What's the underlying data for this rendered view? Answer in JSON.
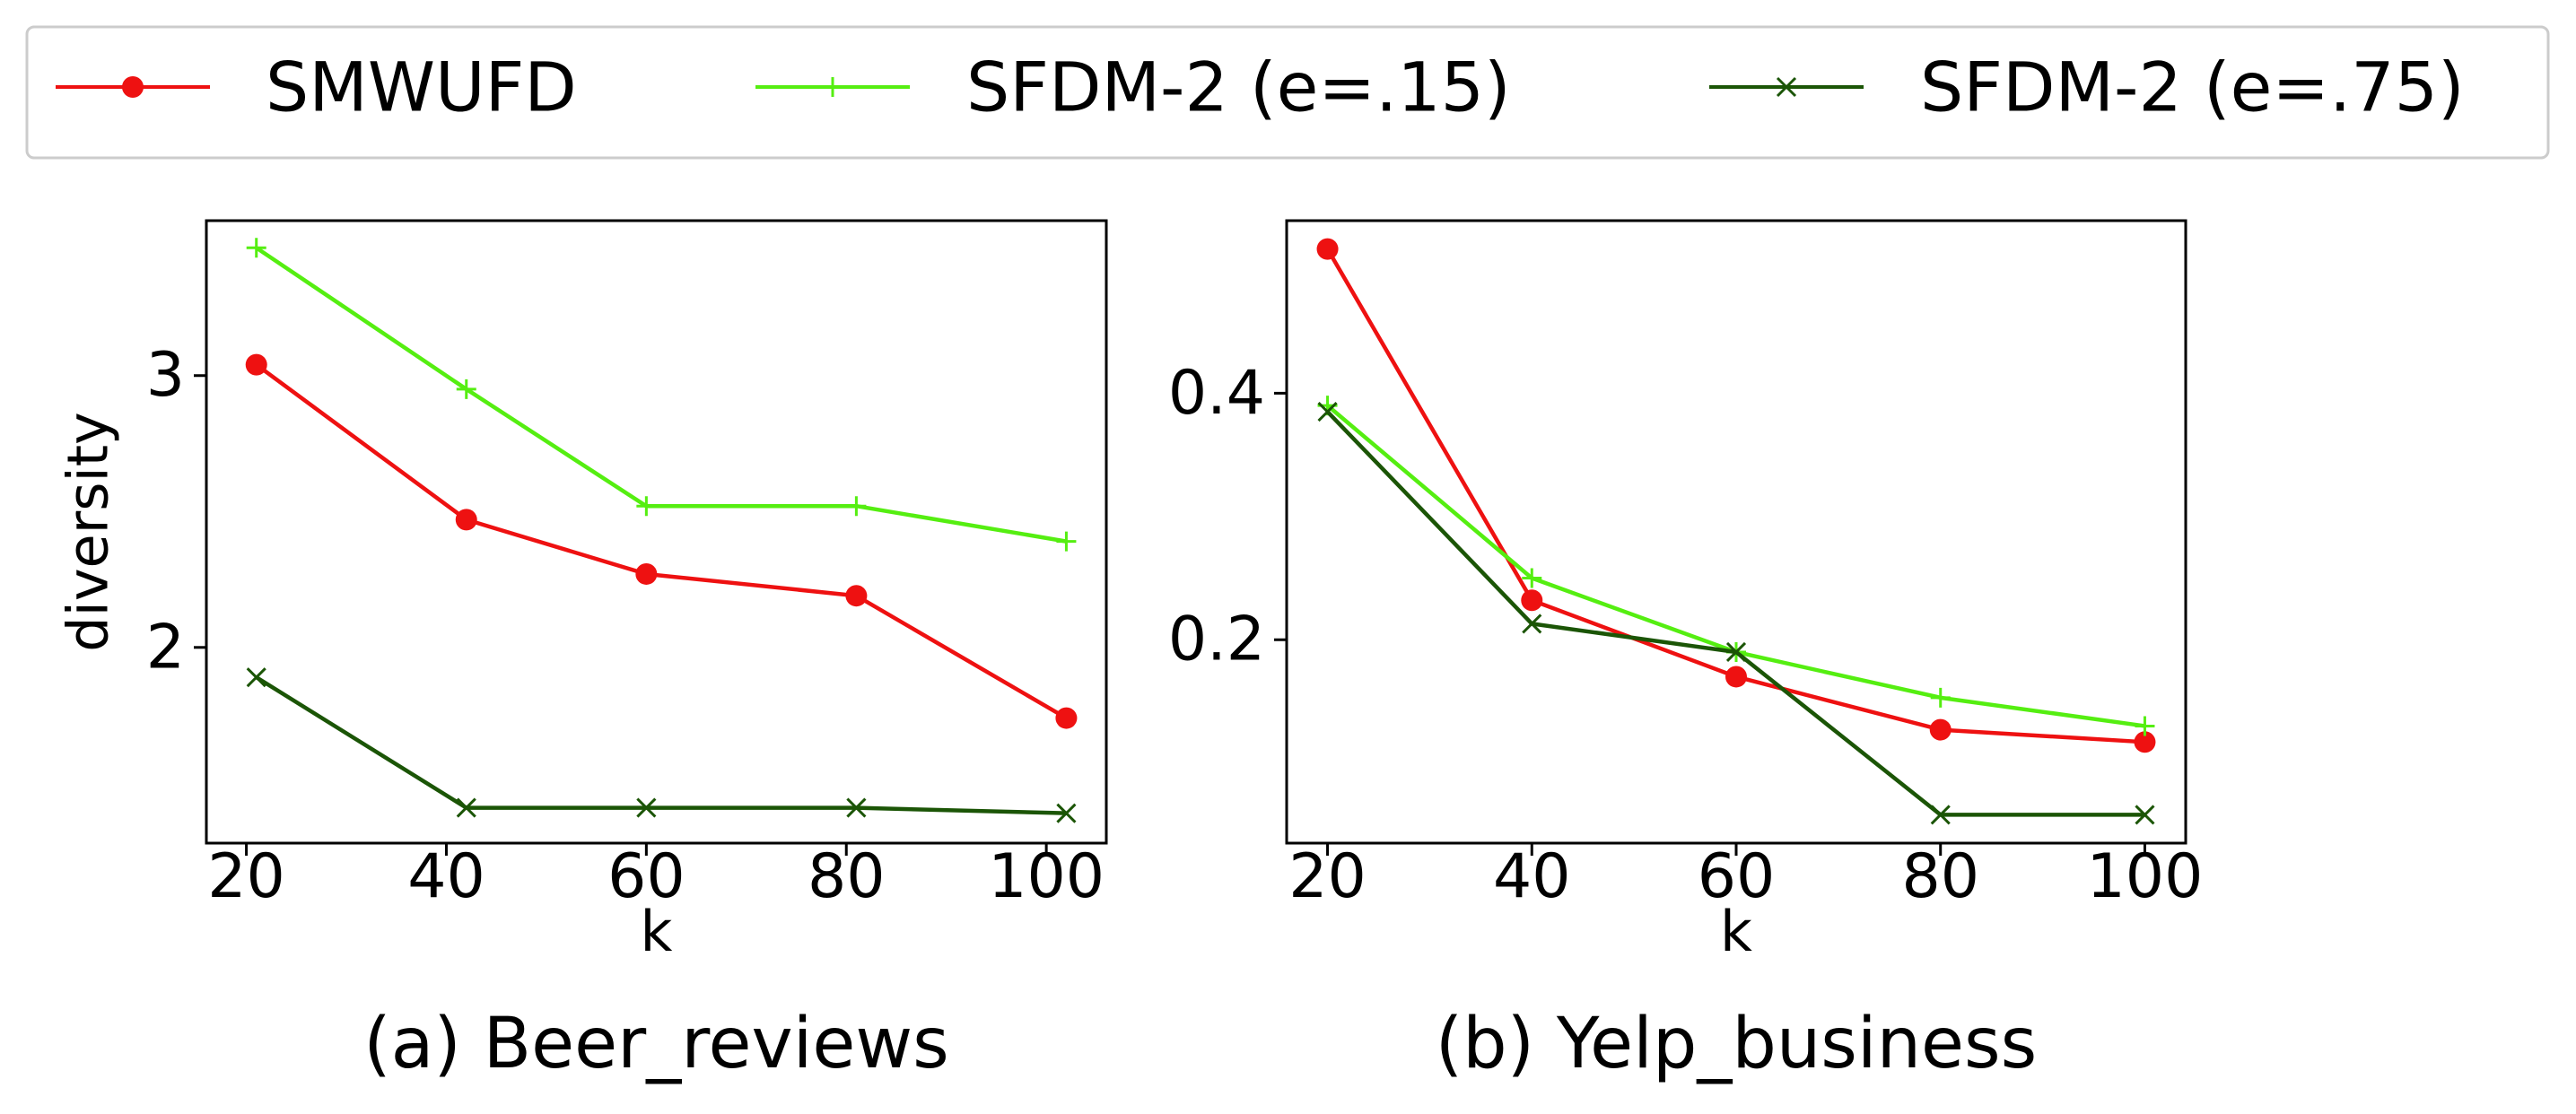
{
  "legend": {
    "placement": "top-center",
    "entries": [
      {
        "label": "SMWUFD",
        "color": "#ee1111",
        "marker": "circle"
      },
      {
        "label": "SFDM-2 (e=.15)",
        "color": "#55ee11",
        "marker": "plus"
      },
      {
        "label": "SFDM-2 (e=.75)",
        "color": "#1b5506",
        "marker": "x"
      }
    ]
  },
  "chart_data": [
    {
      "type": "line",
      "title": "(a) Beer_reviews",
      "xlabel": "k",
      "ylabel": "diversity",
      "xlim": [
        16,
        106
      ],
      "ylim": [
        1.28,
        3.57
      ],
      "xticks": [
        "20",
        "40",
        "60",
        "80",
        "100"
      ],
      "yticks": [
        "2",
        "3"
      ],
      "grid": false,
      "series": [
        {
          "name": "SMWUFD",
          "x": [
            21,
            42,
            60,
            81,
            102
          ],
          "y": [
            3.04,
            2.47,
            2.27,
            2.19,
            1.74
          ]
        },
        {
          "name": "SFDM-2 (e=.15)",
          "x": [
            21,
            42,
            60,
            81,
            102
          ],
          "y": [
            3.47,
            2.95,
            2.52,
            2.52,
            2.39
          ]
        },
        {
          "name": "SFDM-2 (e=.75)",
          "x": [
            21,
            42,
            60,
            81,
            102
          ],
          "y": [
            1.89,
            1.41,
            1.41,
            1.41,
            1.39
          ]
        }
      ]
    },
    {
      "type": "line",
      "title": "(b) Yelp_business",
      "xlabel": "k",
      "ylabel": "",
      "xlim": [
        16,
        104
      ],
      "ylim": [
        0.035,
        0.54
      ],
      "xticks": [
        "20",
        "40",
        "60",
        "80",
        "100"
      ],
      "yticks": [
        "0.2",
        "0.4"
      ],
      "grid": false,
      "series": [
        {
          "name": "SMWUFD",
          "x": [
            20,
            40,
            60,
            80,
            100
          ],
          "y": [
            0.517,
            0.232,
            0.17,
            0.127,
            0.117
          ]
        },
        {
          "name": "SFDM-2 (e=.15)",
          "x": [
            20,
            40,
            60,
            80,
            100
          ],
          "y": [
            0.39,
            0.25,
            0.19,
            0.153,
            0.13
          ]
        },
        {
          "name": "SFDM-2 (e=.75)",
          "x": [
            20,
            40,
            60,
            80,
            100
          ],
          "y": [
            0.385,
            0.213,
            0.19,
            0.058,
            0.058
          ]
        }
      ]
    }
  ]
}
